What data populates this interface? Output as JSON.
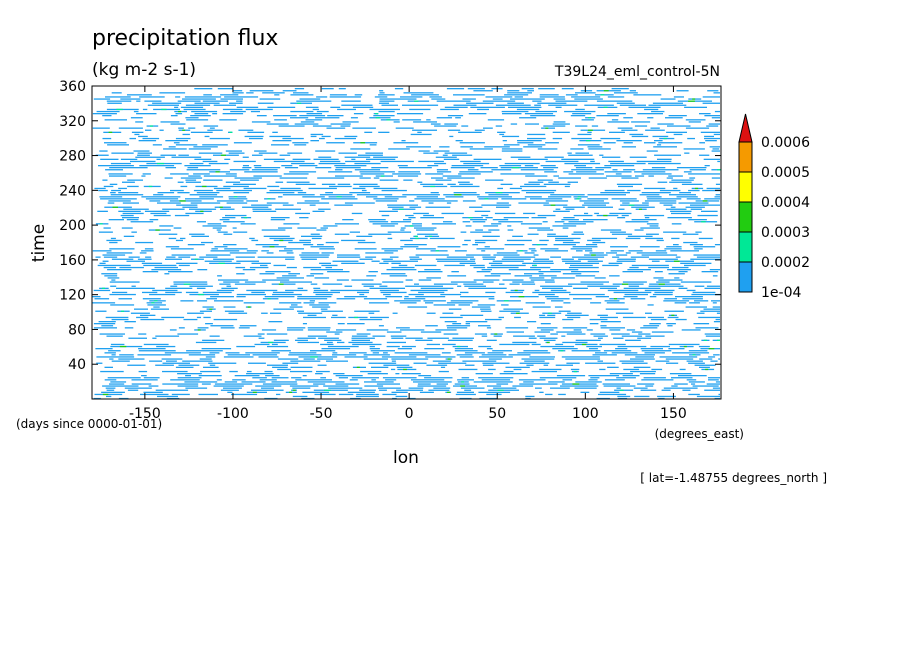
{
  "chart_data": {
    "type": "heatmap",
    "title": "precipitation flux",
    "units": "(kg m-2 s-1)",
    "run_label": "T39L24_eml_control-5N",
    "xlabel": "lon",
    "x_units": "(degrees_east)",
    "ylabel": "time",
    "y_units": "(days since 0000-01-01)",
    "footer": "[ lat=-1.48755 degrees_north ]",
    "xlim": [
      -180,
      177
    ],
    "ylim": [
      0,
      360
    ],
    "x_ticks": [
      -150,
      -100,
      -50,
      0,
      50,
      100,
      150
    ],
    "x_tick_labels": [
      "-150",
      "-100",
      "-50",
      "0",
      "50",
      "100",
      "150"
    ],
    "y_ticks": [
      40,
      80,
      120,
      160,
      200,
      240,
      280,
      320,
      360
    ],
    "y_tick_labels": [
      "40",
      "80",
      "120",
      "160",
      "200",
      "240",
      "280",
      "320",
      "360"
    ],
    "grid": false,
    "colorbar": {
      "labels": [
        "1e-04",
        "0.0002",
        "0.0003",
        "0.0004",
        "0.0005",
        "0.0006"
      ],
      "levels": [
        0.0001,
        0.0002,
        0.0003,
        0.0004,
        0.0005,
        0.0006
      ],
      "colors": [
        "#1fa0f0",
        "#00e896",
        "#22cc11",
        "#ffff00",
        "#f59a00",
        "#dd1111"
      ],
      "extend": "max"
    },
    "field_note_visible": false
  }
}
